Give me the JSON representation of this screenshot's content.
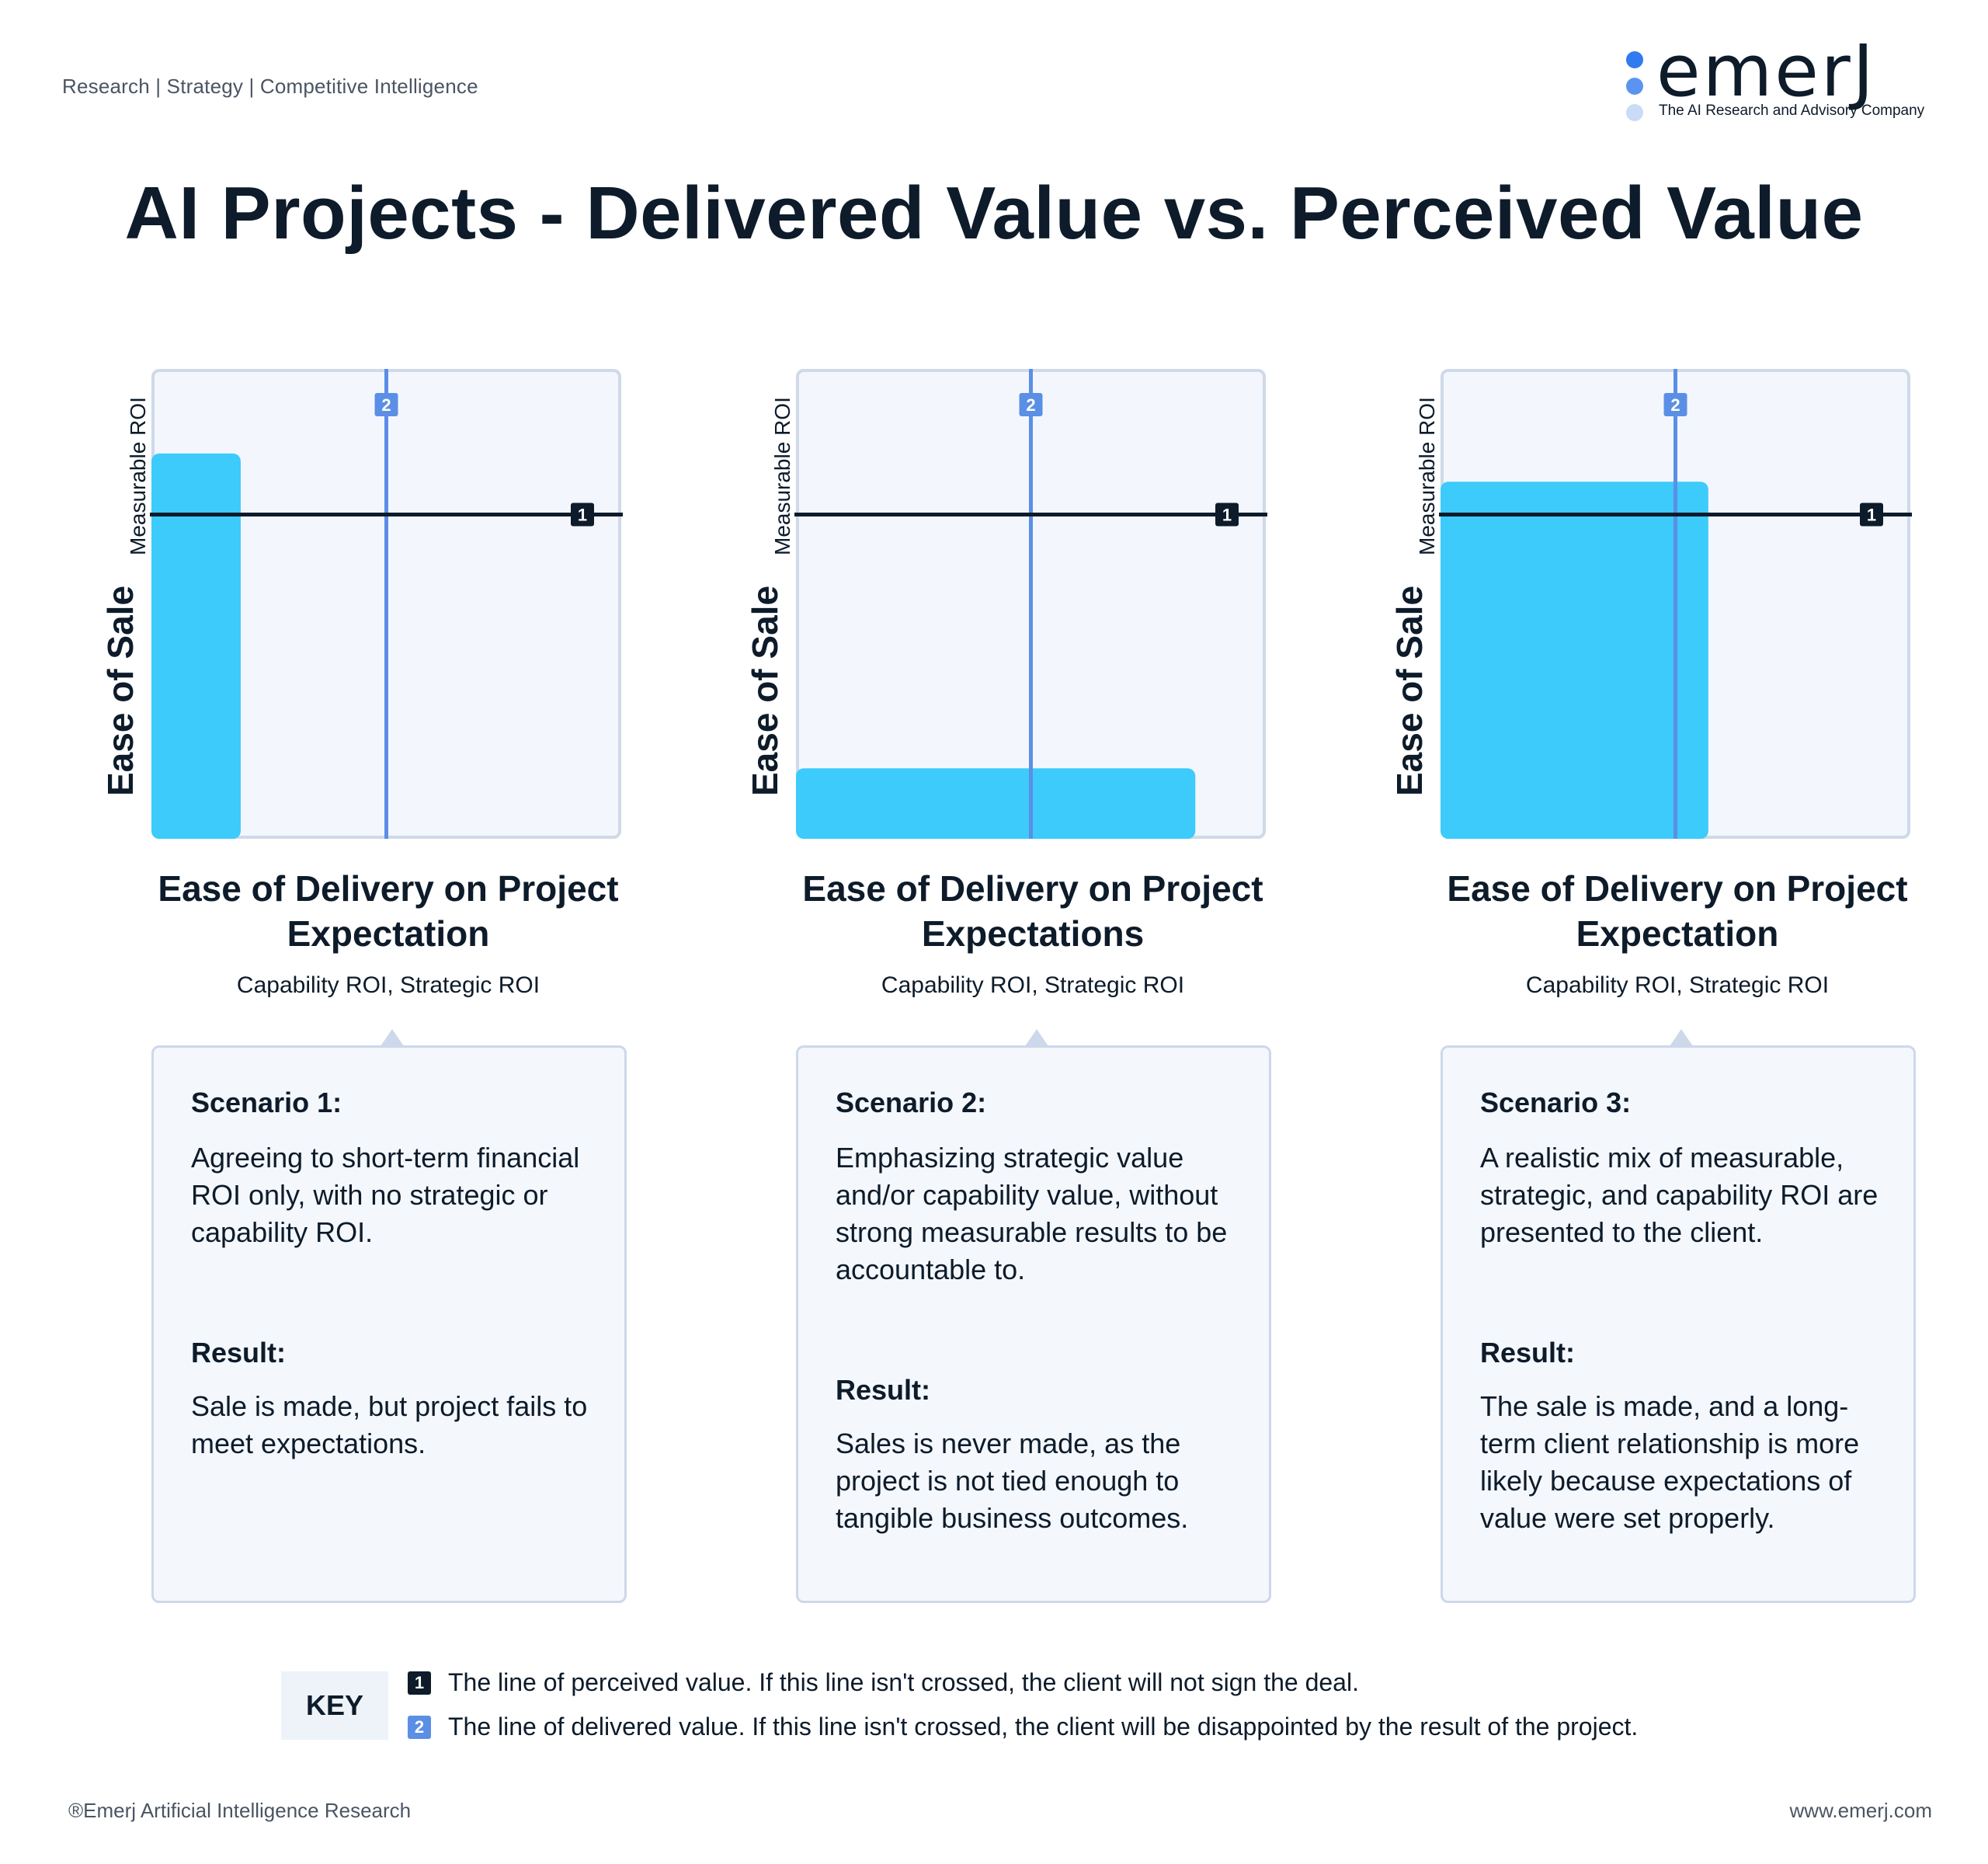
{
  "header": {
    "tagline": "Research | Strategy | Competitive Intelligence",
    "logo_text": "emerJ",
    "logo_subtitle": "The AI Research and Advisory Company"
  },
  "title": "AI Projects - Delivered Value vs. Perceived Value",
  "colors": {
    "bar": "#3ccbfb",
    "delivered_line": "#5b8fe6",
    "perceived_line": "#0d1b2a",
    "logo_dot_1": "#2f7bef",
    "logo_dot_2": "#5b93f1",
    "logo_dot_3": "#c9dbf6"
  },
  "chart_data": [
    {
      "type": "bar",
      "ylabel": "Ease of Sale",
      "ylabel_sub": "Measurable ROI",
      "xlabel": "Ease of Delivery on Project Expectation",
      "xlabel_sub": "Capability ROI, Strategic ROI",
      "bar": {
        "width": 0.19,
        "height": 0.82
      },
      "perceived_line_level": 0.69,
      "delivered_line_level": 0.5,
      "marker_1": "1",
      "marker_2": "2"
    },
    {
      "type": "bar",
      "ylabel": "Ease of Sale",
      "ylabel_sub": "Measurable ROI",
      "xlabel": "Ease of Delivery on Project Expectations",
      "xlabel_sub": "Capability ROI, Strategic ROI",
      "bar": {
        "width": 0.85,
        "height": 0.15
      },
      "perceived_line_level": 0.69,
      "delivered_line_level": 0.5,
      "marker_1": "1",
      "marker_2": "2"
    },
    {
      "type": "bar",
      "ylabel": "Ease of Sale",
      "ylabel_sub": "Measurable ROI",
      "xlabel": "Ease of Delivery on Project Expectation",
      "xlabel_sub": "Capability ROI, Strategic ROI",
      "bar": {
        "width": 0.57,
        "height": 0.76
      },
      "perceived_line_level": 0.69,
      "delivered_line_level": 0.5,
      "marker_1": "1",
      "marker_2": "2"
    }
  ],
  "scenarios": [
    {
      "heading": "Scenario 1:",
      "text": "Agreeing to short-term financial ROI only, with no strategic or capability ROI.",
      "result_heading": "Result:",
      "result_text": "Sale is made, but project fails to meet expectations."
    },
    {
      "heading": "Scenario 2:",
      "text": "Emphasizing strategic value and/or capability value, without strong measurable results to be accountable to.",
      "result_heading": "Result:",
      "result_text": "Sales is never made, as the project is not tied enough to tangible business outcomes."
    },
    {
      "heading": "Scenario 3:",
      "text": "A realistic mix of measurable, strategic, and capability ROI are presented to the client.",
      "result_heading": "Result:",
      "result_text": "The sale is made, and a long-term client relationship is more likely because expectations of value were set properly."
    }
  ],
  "key": {
    "label": "KEY",
    "items": [
      {
        "badge": "1",
        "text": "The line of perceived value. If this line isn't crossed, the client will not sign the deal."
      },
      {
        "badge": "2",
        "text": "The line of delivered value. If this line isn't crossed, the client will be disappointed by the result of the project."
      }
    ]
  },
  "footer": {
    "copyright": "®Emerj Artificial Intelligence Research",
    "website": "www.emerj.com"
  }
}
